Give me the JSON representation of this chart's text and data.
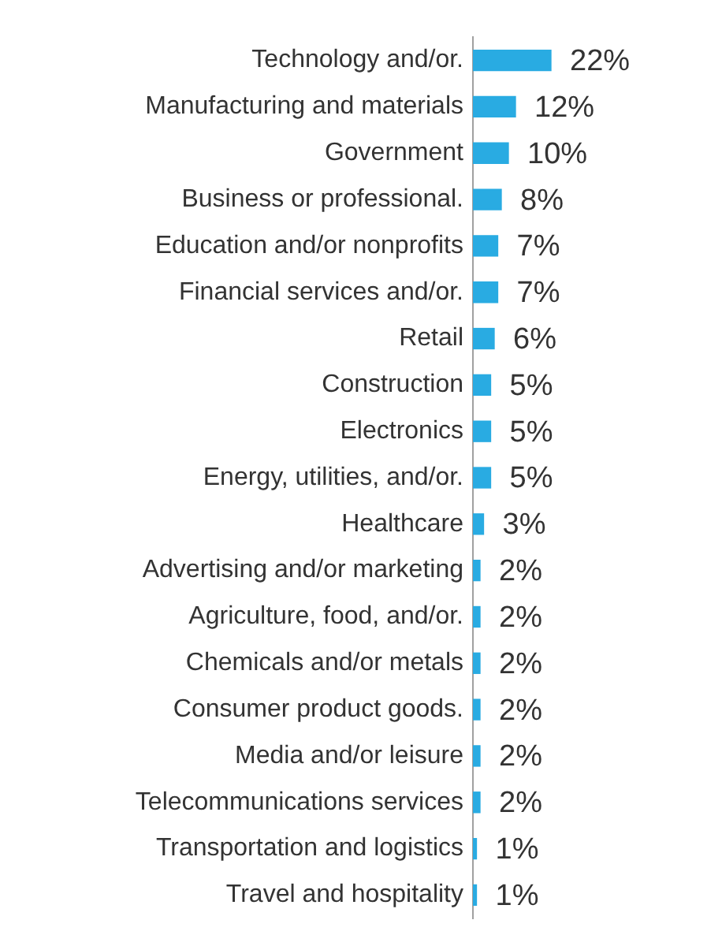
{
  "chart_data": {
    "type": "bar",
    "orientation": "horizontal",
    "value_labels": [
      "22%",
      "12%",
      "10%",
      "8%",
      "7%",
      "7%",
      "6%",
      "5%",
      "5%",
      "5%",
      "3%",
      "2%",
      "2%",
      "2%",
      "2%",
      "2%",
      "2%",
      "1%",
      "1%"
    ],
    "categories": [
      "Technology and/or.",
      "Manufacturing and materials",
      "Government",
      "Business or professional.",
      "Education and/or nonprofits",
      "Financial services and/or.",
      "Retail",
      "Construction",
      "Electronics",
      "Energy, utilities, and/or.",
      "Healthcare",
      "Advertising and/or marketing",
      "Agriculture, food, and/or.",
      "Chemicals and/or metals",
      "Consumer product goods.",
      "Media and/or leisure",
      "Telecommunications services",
      "Transportation and logistics",
      "Travel and hospitality"
    ],
    "values": [
      22,
      12,
      10,
      8,
      7,
      7,
      6,
      5,
      5,
      5,
      3,
      2,
      2,
      2,
      2,
      2,
      2,
      1,
      1
    ],
    "color": "#29abe2"
  }
}
